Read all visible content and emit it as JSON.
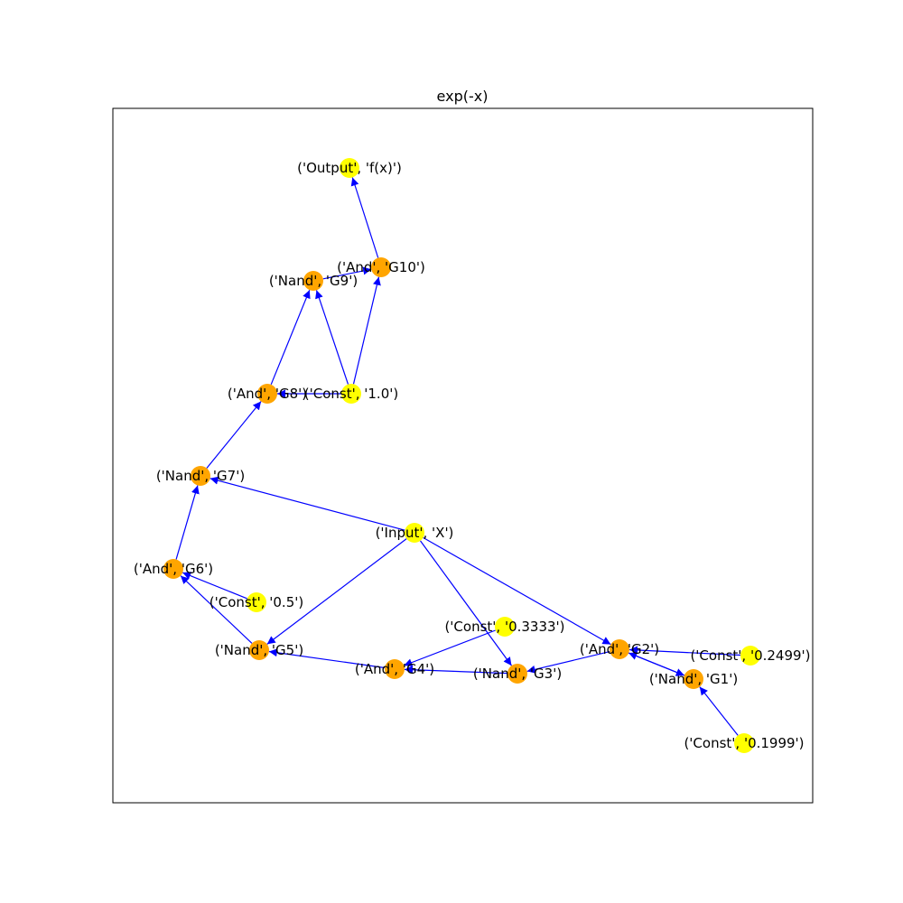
{
  "title": "exp(-x)",
  "colors": {
    "gate_node": "#ffa500",
    "io_node": "#ffff00",
    "edge": "#0000ff",
    "frame": "#000000",
    "label": "#000000"
  },
  "graph": {
    "nodes": [
      {
        "id": "output",
        "kind": "io",
        "label": "('Output', 'f(x)')"
      },
      {
        "id": "g10",
        "kind": "gate",
        "label": "('And', 'G10')"
      },
      {
        "id": "g9",
        "kind": "gate",
        "label": "('Nand', 'G9')"
      },
      {
        "id": "g8",
        "kind": "gate",
        "label": "('And', 'G8')"
      },
      {
        "id": "c1",
        "kind": "io",
        "label": "('Const', '1.0')"
      },
      {
        "id": "g7",
        "kind": "gate",
        "label": "('Nand', 'G7')"
      },
      {
        "id": "input",
        "kind": "io",
        "label": "('Input', 'X')"
      },
      {
        "id": "g6",
        "kind": "gate",
        "label": "('And', 'G6')"
      },
      {
        "id": "c05",
        "kind": "io",
        "label": "('Const', '0.5')"
      },
      {
        "id": "c03333",
        "kind": "io",
        "label": "('Const', '0.3333')"
      },
      {
        "id": "g2",
        "kind": "gate",
        "label": "('And', 'G2')"
      },
      {
        "id": "c02499",
        "kind": "io",
        "label": "('Const', '0.2499')"
      },
      {
        "id": "g5",
        "kind": "gate",
        "label": "('Nand', 'G5')"
      },
      {
        "id": "g4",
        "kind": "gate",
        "label": "('And', 'G4')"
      },
      {
        "id": "g3",
        "kind": "gate",
        "label": "('Nand', 'G3')"
      },
      {
        "id": "g1",
        "kind": "gate",
        "label": "('Nand', 'G1')"
      },
      {
        "id": "c01999",
        "kind": "io",
        "label": "('Const', '0.1999')"
      }
    ],
    "edges": [
      [
        "g10",
        "output"
      ],
      [
        "g9",
        "g10"
      ],
      [
        "c1",
        "g10"
      ],
      [
        "c1",
        "g9"
      ],
      [
        "g8",
        "g9"
      ],
      [
        "c1",
        "g8"
      ],
      [
        "g7",
        "g8"
      ],
      [
        "input",
        "g7"
      ],
      [
        "g6",
        "g7"
      ],
      [
        "g5",
        "g6"
      ],
      [
        "c05",
        "g6"
      ],
      [
        "input",
        "g5"
      ],
      [
        "g4",
        "g5"
      ],
      [
        "c03333",
        "g4"
      ],
      [
        "g3",
        "g4"
      ],
      [
        "input",
        "g3"
      ],
      [
        "g2",
        "g3"
      ],
      [
        "input",
        "g2"
      ],
      [
        "c02499",
        "g2"
      ],
      [
        "g1",
        "g2"
      ],
      [
        "g2",
        "g1"
      ],
      [
        "c01999",
        "g1"
      ]
    ]
  }
}
